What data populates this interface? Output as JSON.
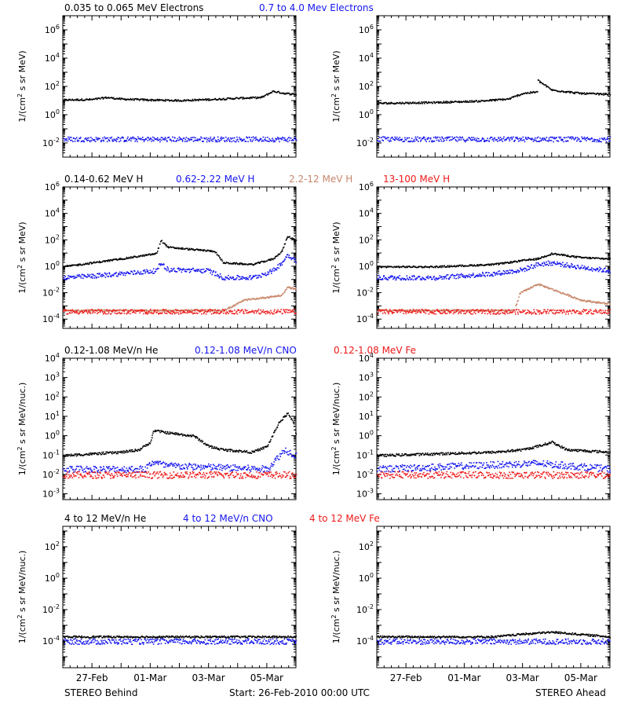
{
  "colors": {
    "black": "#000000",
    "blue": "#1515ee",
    "tan": "#c8866a",
    "red": "#ee1a1a"
  },
  "footer": {
    "left": "STEREO Behind",
    "center": "Start: 26-Feb-2010 00:00 UTC",
    "right": "STEREO Ahead"
  },
  "chart_data": [
    {
      "type": "scatter",
      "scale": "log",
      "ylabel": "1/(cm2 s sr MeV)",
      "ylim": [
        0.001,
        10000000
      ],
      "ytick_labels": [
        "10^-2",
        "10^0",
        "10^2",
        "10^4",
        "10^6"
      ],
      "xlim_days_from_start": [
        0,
        8
      ],
      "xtick_labels": [
        "27-Feb",
        "01-Mar",
        "03-Mar",
        "05-Mar"
      ],
      "legend": [
        {
          "label": "0.035 to 0.065 MeV Electrons",
          "color": "black"
        },
        {
          "label": "0.7 to 4.0 Mev Electrons",
          "color": "blue"
        }
      ],
      "panels": {
        "behind": [
          {
            "name": "0.035 to 0.065 MeV Electrons",
            "color": "black",
            "points": [
              [
                0,
                12
              ],
              [
                1,
                13
              ],
              [
                1.5,
                18
              ],
              [
                2,
                14
              ],
              [
                3,
                12
              ],
              [
                4,
                11
              ],
              [
                5,
                13
              ],
              [
                6,
                16
              ],
              [
                6.8,
                18
              ],
              [
                7.2,
                50
              ],
              [
                7.6,
                35
              ],
              [
                8,
                30
              ]
            ]
          },
          {
            "name": "0.7 to 4.0 Mev Electrons",
            "color": "blue",
            "points": [
              [
                0,
                0.02
              ],
              [
                8,
                0.02
              ]
            ]
          }
        ],
        "ahead": [
          {
            "name": "0.035 to 0.065 MeV Electrons",
            "color": "black",
            "points": [
              [
                0,
                7
              ],
              [
                2,
                8
              ],
              [
                3.5,
                10
              ],
              [
                4.5,
                14
              ],
              [
                5,
                35
              ],
              [
                5.5,
                45
              ],
              [
                5.5,
                300
              ],
              [
                6,
                60
              ],
              [
                7,
                35
              ],
              [
                8,
                30
              ]
            ]
          },
          {
            "name": "0.7 to 4.0 Mev Electrons",
            "color": "blue",
            "points": [
              [
                0,
                0.02
              ],
              [
                8,
                0.02
              ]
            ]
          }
        ]
      }
    },
    {
      "type": "scatter",
      "scale": "log",
      "ylabel": "1/(cm2 s sr MeV)",
      "ylim": [
        2e-05,
        1000000
      ],
      "ytick_labels": [
        "10^-4",
        "10^-2",
        "10^0",
        "10^2",
        "10^4",
        "10^6"
      ],
      "xlim_days_from_start": [
        0,
        8
      ],
      "xtick_labels": [
        "27-Feb",
        "01-Mar",
        "03-Mar",
        "05-Mar"
      ],
      "legend": [
        {
          "label": "0.14-0.62 MeV H",
          "color": "black"
        },
        {
          "label": "0.62-2.22 MeV H",
          "color": "blue"
        },
        {
          "label": "2.2-12 MeV H",
          "color": "tan"
        },
        {
          "label": "13-100 MeV H",
          "color": "red"
        }
      ],
      "panels": {
        "behind": [
          {
            "name": "0.14-0.62 MeV H",
            "color": "black",
            "points": [
              [
                0,
                1
              ],
              [
                1,
                2
              ],
              [
                2,
                4
              ],
              [
                3.2,
                10
              ],
              [
                3.35,
                100
              ],
              [
                3.6,
                30
              ],
              [
                4.5,
                20
              ],
              [
                5.2,
                15
              ],
              [
                5.5,
                2
              ],
              [
                6.5,
                1.5
              ],
              [
                7.2,
                4
              ],
              [
                7.5,
                15
              ],
              [
                7.7,
                200
              ],
              [
                8,
                100
              ]
            ]
          },
          {
            "name": "0.62-2.22 MeV H",
            "color": "blue",
            "points": [
              [
                0,
                0.15
              ],
              [
                1,
                0.2
              ],
              [
                2,
                0.3
              ],
              [
                3.2,
                0.5
              ],
              [
                3.35,
                2
              ],
              [
                3.6,
                0.6
              ],
              [
                5,
                0.5
              ],
              [
                5.5,
                0.15
              ],
              [
                6.5,
                0.15
              ],
              [
                7.2,
                0.5
              ],
              [
                7.5,
                2
              ],
              [
                7.7,
                8
              ],
              [
                8,
                3
              ]
            ]
          },
          {
            "name": "2.2-12 MeV H",
            "color": "tan",
            "points": [
              [
                0,
                0.0005
              ],
              [
                5.5,
                0.0005
              ],
              [
                5.8,
                0.001
              ],
              [
                6.2,
                0.003
              ],
              [
                7,
                0.005
              ],
              [
                7.5,
                0.007
              ],
              [
                7.7,
                0.03
              ],
              [
                8,
                0.02
              ]
            ]
          },
          {
            "name": "13-100 MeV H",
            "color": "red",
            "points": [
              [
                0,
                0.0004
              ],
              [
                8,
                0.0004
              ]
            ]
          }
        ],
        "ahead": [
          {
            "name": "0.14-0.62 MeV H",
            "color": "black",
            "points": [
              [
                0,
                1
              ],
              [
                2,
                1
              ],
              [
                4,
                1.5
              ],
              [
                5,
                3
              ],
              [
                5.5,
                4
              ],
              [
                6,
                10
              ],
              [
                7,
                5
              ],
              [
                8,
                4
              ]
            ]
          },
          {
            "name": "0.62-2.22 MeV H",
            "color": "blue",
            "points": [
              [
                0,
                0.15
              ],
              [
                2,
                0.15
              ],
              [
                4,
                0.3
              ],
              [
                5,
                0.6
              ],
              [
                5.5,
                1.5
              ],
              [
                6,
                2
              ],
              [
                7,
                0.9
              ],
              [
                8,
                0.5
              ]
            ]
          },
          {
            "name": "2.2-12 MeV H",
            "color": "tan",
            "points": [
              [
                0,
                0.0005
              ],
              [
                4.7,
                0.0005
              ],
              [
                4.9,
                0.01
              ],
              [
                5.5,
                0.05
              ],
              [
                6,
                0.02
              ],
              [
                7,
                0.003
              ],
              [
                8,
                0.0015
              ]
            ]
          },
          {
            "name": "13-100 MeV H",
            "color": "red",
            "points": [
              [
                0,
                0.0004
              ],
              [
                8,
                0.0004
              ]
            ]
          }
        ]
      }
    },
    {
      "type": "scatter",
      "scale": "log",
      "ylabel": "1/(cm2 s sr MeV/nuc.)",
      "ylim": [
        0.0005,
        10000
      ],
      "ytick_labels": [
        "10^-3",
        "10^-2",
        "10^-1",
        "10^0",
        "10^1",
        "10^2",
        "10^3",
        "10^4"
      ],
      "xlim_days_from_start": [
        0,
        8
      ],
      "xtick_labels": [
        "27-Feb",
        "01-Mar",
        "03-Mar",
        "05-Mar"
      ],
      "legend": [
        {
          "label": "0.12-1.08 MeV/n He",
          "color": "black"
        },
        {
          "label": "0.12-1.08 MeV/n CNO",
          "color": "blue"
        },
        {
          "label": "0.12-1.08 MeV Fe",
          "color": "red"
        }
      ],
      "panels": {
        "behind": [
          {
            "name": "0.12-1.08 MeV/n He",
            "color": "black",
            "points": [
              [
                0,
                0.1
              ],
              [
                2,
                0.15
              ],
              [
                2.6,
                0.2
              ],
              [
                3,
                0.5
              ],
              [
                3.1,
                2
              ],
              [
                3.6,
                1.5
              ],
              [
                4.5,
                1
              ],
              [
                5,
                0.3
              ],
              [
                5.5,
                0.2
              ],
              [
                6.5,
                0.15
              ],
              [
                7,
                0.3
              ],
              [
                7.4,
                5
              ],
              [
                7.7,
                15
              ],
              [
                7.9,
                5
              ],
              [
                8,
                1
              ]
            ]
          },
          {
            "name": "0.12-1.08 MeV/n CNO",
            "color": "blue",
            "points": [
              [
                0,
                0.02
              ],
              [
                2.8,
                0.02
              ],
              [
                3.1,
                0.05
              ],
              [
                3.5,
                0.03
              ],
              [
                7,
                0.02
              ],
              [
                7.6,
                0.2
              ],
              [
                8,
                0.1
              ]
            ]
          },
          {
            "name": "0.12-1.08 MeV Fe",
            "color": "red",
            "points": [
              [
                0,
                0.01
              ],
              [
                8,
                0.01
              ]
            ]
          }
        ],
        "ahead": [
          {
            "name": "0.12-1.08 MeV/n He",
            "color": "black",
            "points": [
              [
                0,
                0.1
              ],
              [
                4,
                0.15
              ],
              [
                5,
                0.2
              ],
              [
                5.5,
                0.3
              ],
              [
                6,
                0.5
              ],
              [
                6.5,
                0.2
              ],
              [
                8,
                0.15
              ]
            ]
          },
          {
            "name": "0.12-1.08 MeV/n CNO",
            "color": "blue",
            "points": [
              [
                0,
                0.02
              ],
              [
                5.5,
                0.04
              ],
              [
                8,
                0.02
              ]
            ]
          },
          {
            "name": "0.12-1.08 MeV Fe",
            "color": "red",
            "points": [
              [
                0,
                0.01
              ],
              [
                8,
                0.01
              ]
            ]
          }
        ]
      }
    },
    {
      "type": "scatter",
      "scale": "log",
      "ylabel": "1/(cm2 s sr MeV/nuc.)",
      "ylim": [
        2e-06,
        2000
      ],
      "ytick_labels": [
        "10^-4",
        "10^-2",
        "10^0",
        "10^2"
      ],
      "xlim_days_from_start": [
        0,
        8
      ],
      "xtick_labels": [
        "27-Feb",
        "01-Mar",
        "03-Mar",
        "05-Mar"
      ],
      "legend": [
        {
          "label": "4 to 12 MeV/n He",
          "color": "black"
        },
        {
          "label": "4 to 12 MeV/n CNO",
          "color": "blue"
        },
        {
          "label": "4 to 12 MeV Fe",
          "color": "red"
        }
      ],
      "panels": {
        "behind": [
          {
            "name": "4 to 12 MeV/n He",
            "color": "black",
            "points": [
              [
                0,
                0.0002
              ],
              [
                8,
                0.0002
              ]
            ]
          },
          {
            "name": "4 to 12 MeV/n CNO",
            "color": "blue",
            "points": [
              [
                0,
                0.0001
              ],
              [
                8,
                0.0001
              ]
            ]
          }
        ],
        "ahead": [
          {
            "name": "4 to 12 MeV/n He",
            "color": "black",
            "points": [
              [
                0,
                0.0002
              ],
              [
                4,
                0.0002
              ],
              [
                5,
                0.0003
              ],
              [
                6,
                0.0004
              ],
              [
                8,
                0.0002
              ]
            ]
          },
          {
            "name": "4 to 12 MeV/n CNO",
            "color": "blue",
            "points": [
              [
                0,
                0.0001
              ],
              [
                8,
                0.0001
              ]
            ]
          }
        ]
      }
    }
  ]
}
